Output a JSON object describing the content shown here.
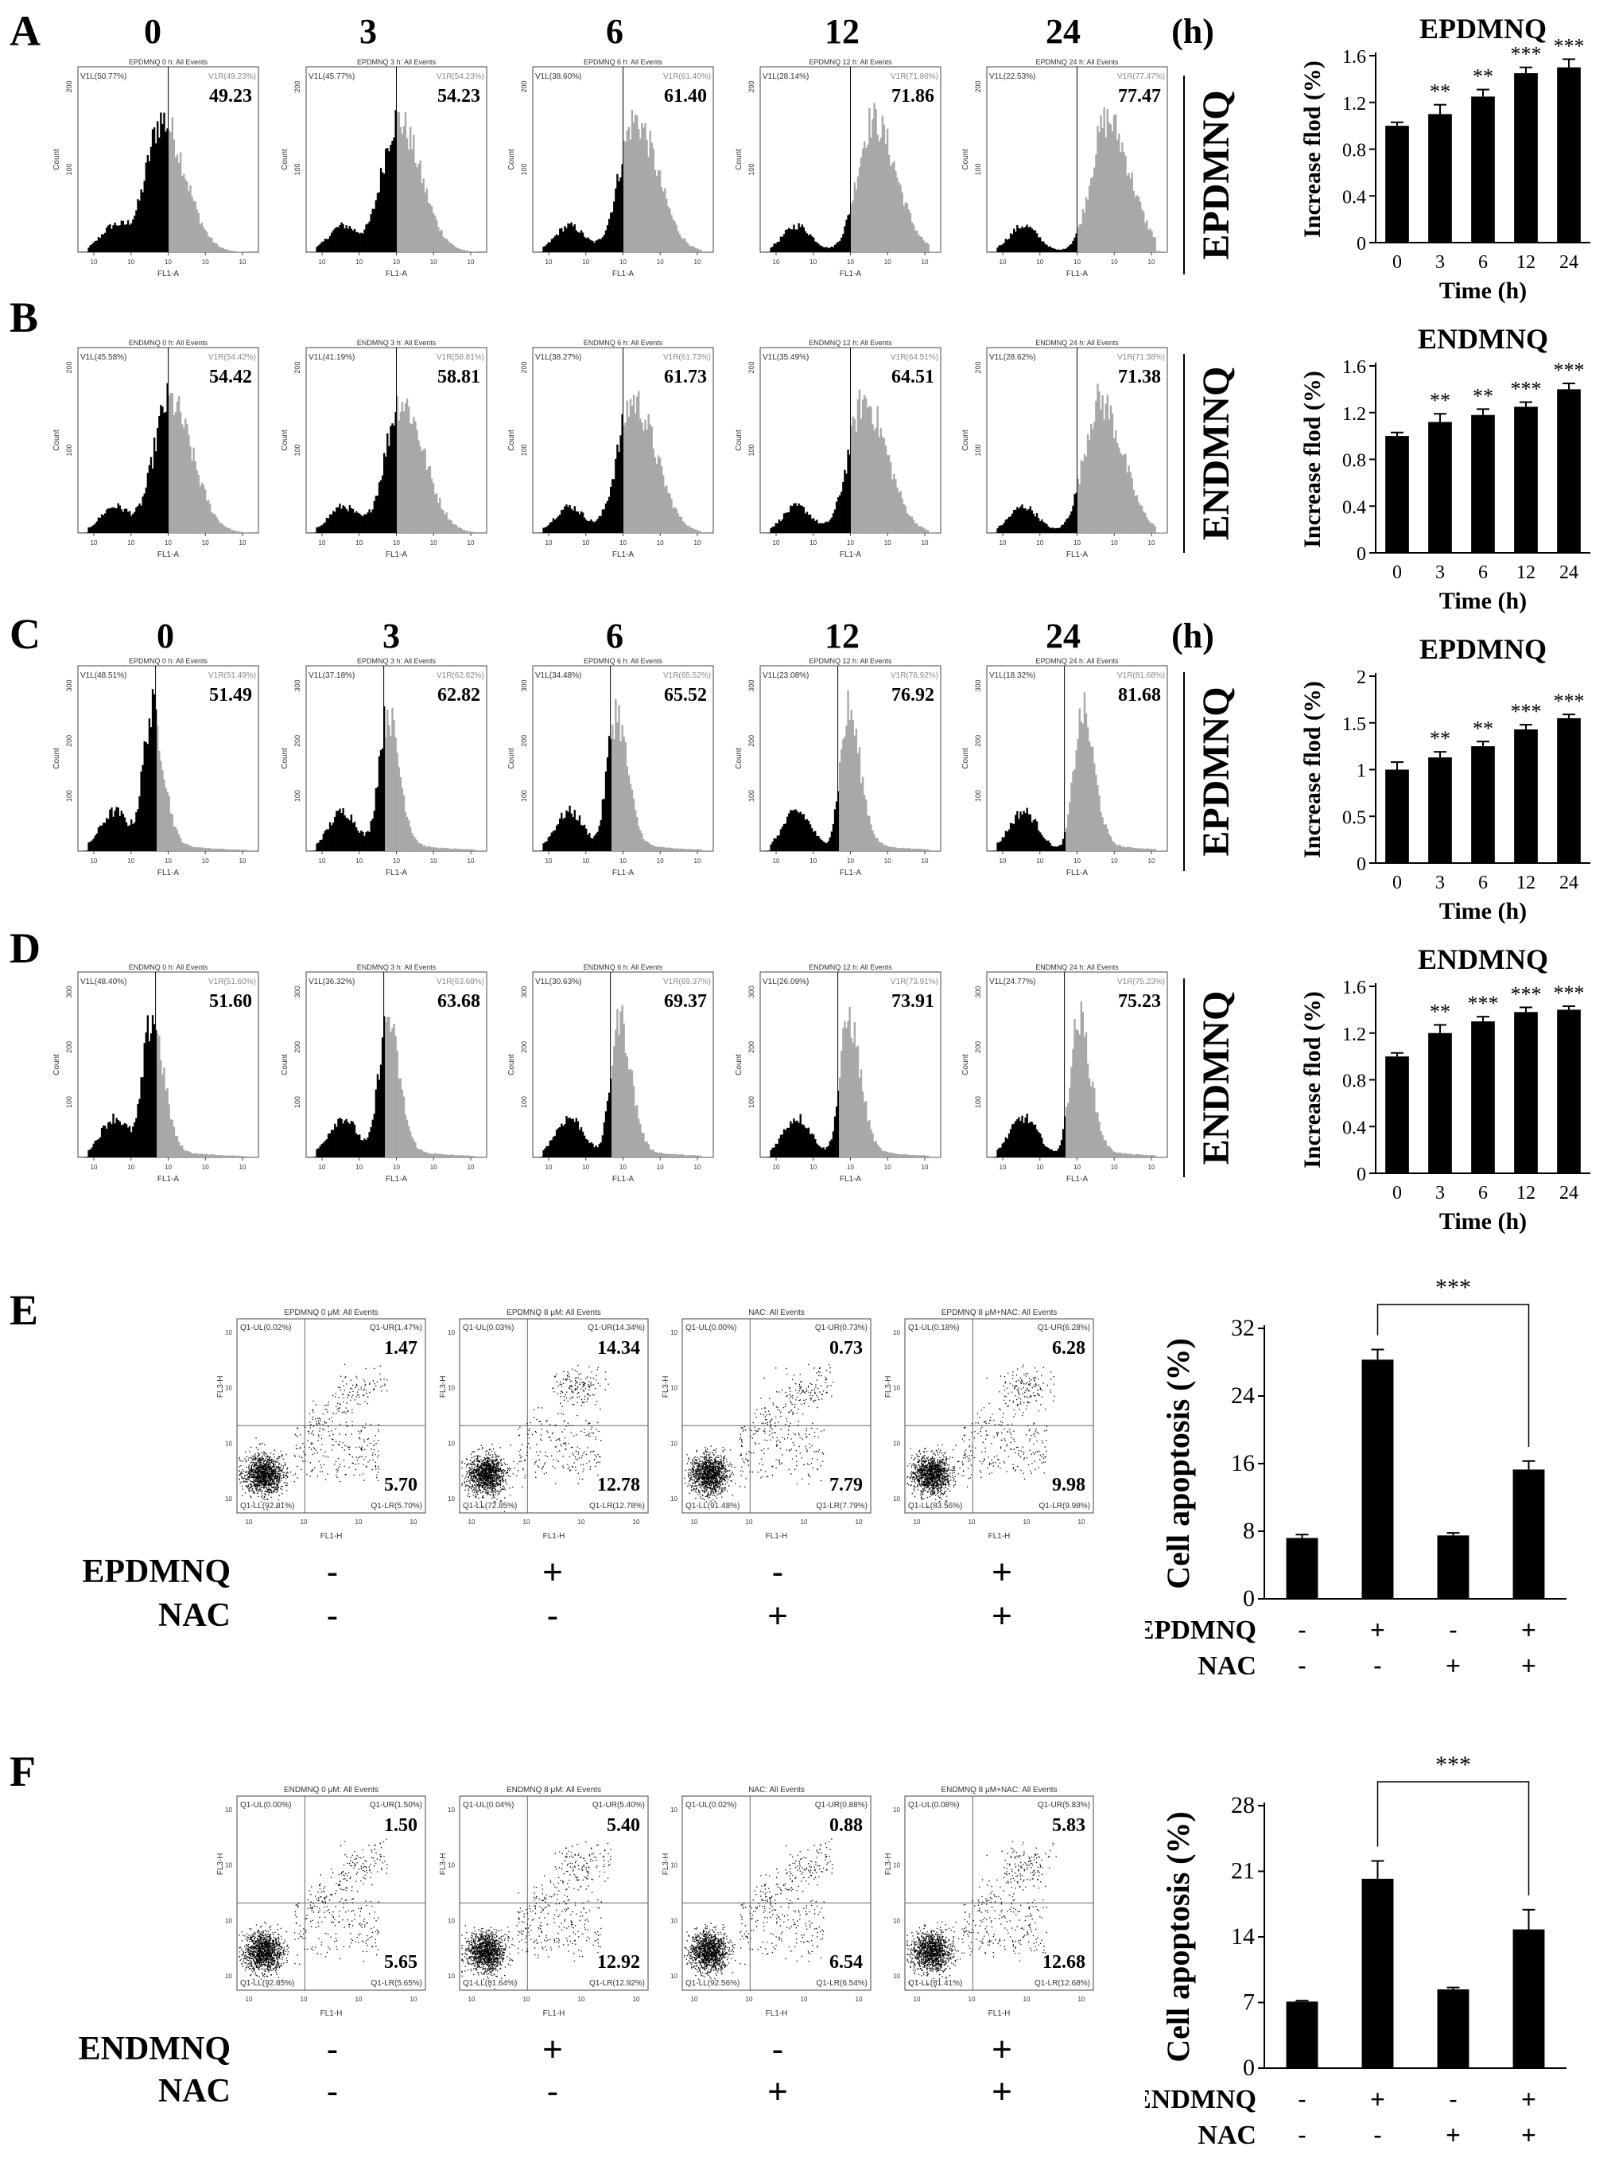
{
  "panels": {
    "A": {
      "letter": "A",
      "compound": "EPDMNQ",
      "hours": [
        "0",
        "3",
        "6",
        "12",
        "24"
      ],
      "hour_unit": "(h)",
      "hist_titles": [
        "EPDMNQ 0 h: All Events",
        "EPDMNQ 3 h: All Events",
        "EPDMNQ 6 h: All Events",
        "EPDMNQ 12 h: All Events",
        "EPDMNQ 24 h: All Events"
      ],
      "left_gate": [
        "V1L(50.77%)",
        "V1L(45.77%)",
        "V1L(38.60%)",
        "V1L(28.14%)",
        "V1L(22.53%)"
      ],
      "right_gate": [
        "V1R(49.23%)",
        "V1R(54.23%)",
        "V1R(61.40%)",
        "V1R(71.86%)",
        "V1R(77.47%)"
      ],
      "values": [
        "49.23",
        "54.23",
        "61.40",
        "71.86",
        "77.47"
      ],
      "peak_frac": [
        0.46,
        0.5,
        0.56,
        0.62,
        0.66
      ],
      "y_ticks": [
        "200",
        "100"
      ]
    },
    "B": {
      "letter": "B",
      "compound": "ENDMNQ",
      "hist_titles": [
        "ENDMNQ 0 h: All Events",
        "ENDMNQ 3 h: All Events",
        "ENDMNQ 6 h: All Events",
        "ENDMNQ 12 h: All Events",
        "ENDMNQ 24 h: All Events"
      ],
      "left_gate": [
        "V1L(45.58%)",
        "V1L(41.19%)",
        "V1L(38.27%)",
        "V1L(35.49%)",
        "V1L(28.62%)"
      ],
      "right_gate": [
        "V1R(54.42%)",
        "V1R(58.81%)",
        "V1R(61.73%)",
        "V1R(64.51%)",
        "V1R(71.38%)"
      ],
      "values": [
        "54.42",
        "58.81",
        "61.73",
        "64.51",
        "71.38"
      ],
      "peak_frac": [
        0.5,
        0.52,
        0.55,
        0.57,
        0.62
      ],
      "y_ticks": [
        "200",
        "100"
      ]
    },
    "C": {
      "letter": "C",
      "compound": "EPDMNQ",
      "hours": [
        "0",
        "3",
        "6",
        "12",
        "24"
      ],
      "hour_unit": "(h)",
      "hist_titles": [
        "EPDMNQ 0 h: All Events",
        "EPDMNQ 3 h: All Events",
        "EPDMNQ 6 h: All Events",
        "EPDMNQ 12 h: All Events",
        "EPDMNQ 24 h: All Events"
      ],
      "left_gate": [
        "V1L(48.51%)",
        "V1L(37.18%)",
        "V1L(34.48%)",
        "V1L(23.08%)",
        "V1L(18.32%)"
      ],
      "right_gate": [
        "V1R(51.49%)",
        "V1R(62.82%)",
        "V1R(65.52%)",
        "V1R(76.92%)",
        "V1R(81.68%)"
      ],
      "values": [
        "51.49",
        "62.82",
        "65.52",
        "76.92",
        "81.68"
      ],
      "peak_frac": [
        0.4,
        0.44,
        0.45,
        0.48,
        0.52
      ],
      "y_ticks": [
        "300",
        "200",
        "100"
      ]
    },
    "D": {
      "letter": "D",
      "compound": "ENDMNQ",
      "hist_titles": [
        "ENDMNQ 0 h: All Events",
        "ENDMNQ 3 h: All Events",
        "ENDMNQ 6 h: All Events",
        "ENDMNQ 12 h: All Events",
        "ENDMNQ 24 h: All Events"
      ],
      "left_gate": [
        "V1L(48.40%)",
        "V1L(36.32%)",
        "V1L(30.63%)",
        "V1L(26.09%)",
        "V1L(24.77%)"
      ],
      "right_gate": [
        "V1R(51.60%)",
        "V1R(63.68%)",
        "V1R(69.37%)",
        "V1R(73.91%)",
        "V1R(75.23%)"
      ],
      "values": [
        "51.60",
        "63.68",
        "69.37",
        "73.91",
        "75.23"
      ],
      "peak_frac": [
        0.4,
        0.44,
        0.47,
        0.48,
        0.5
      ],
      "y_ticks": [
        "300",
        "200",
        "100"
      ]
    },
    "E": {
      "letter": "E",
      "treat1": "EPDMNQ",
      "treat2": "NAC",
      "titles": [
        "EPDMNQ 0 μM: All Events",
        "EPDMNQ 8 μM: All Events",
        "NAC: All Events",
        "EPDMNQ 8 μM+NAC: All Events"
      ],
      "ul": [
        "Q1-UL(0.02%)",
        "Q1-UL(0.03%)",
        "Q1-UL(0.00%)",
        "Q1-UL(0.18%)"
      ],
      "ur": [
        "Q1-UR(1.47%)",
        "Q1-UR(14.34%)",
        "Q1-UR(0.73%)",
        "Q1-UR(6.28%)"
      ],
      "ll": [
        "Q1-LL(92.81%)",
        "Q1-LL(72.85%)",
        "Q1-LL(91.48%)",
        "Q1-LL(83.56%)"
      ],
      "lr": [
        "Q1-LR(5.70%)",
        "Q1-LR(12.78%)",
        "Q1-LR(7.79%)",
        "Q1-LR(9.98%)"
      ],
      "ur_val": [
        "1.47",
        "14.34",
        "0.73",
        "6.28"
      ],
      "lr_val": [
        "5.70",
        "12.78",
        "7.79",
        "9.98"
      ],
      "t1_signs": [
        "-",
        "+",
        "-",
        "+"
      ],
      "t2_signs": [
        "-",
        "-",
        "+",
        "+"
      ]
    },
    "F": {
      "letter": "F",
      "treat1": "ENDMNQ",
      "treat2": "NAC",
      "titles": [
        "ENDMNQ 0 μM: All Events",
        "ENDMNQ 8 μM: All Events",
        "NAC: All Events",
        "ENDMNQ 8 μM+NAC: All Events"
      ],
      "ul": [
        "Q1-UL(0.00%)",
        "Q1-UL(0.04%)",
        "Q1-UL(0.02%)",
        "Q1-UL(0.08%)"
      ],
      "ur": [
        "Q1-UR(1.50%)",
        "Q1-UR(5.40%)",
        "Q1-UR(0.88%)",
        "Q1-UR(5.83%)"
      ],
      "ll": [
        "Q1-LL(92.85%)",
        "Q1-LL(81.64%)",
        "Q1-LL(92.56%)",
        "Q1-LL(81.41%)"
      ],
      "lr": [
        "Q1-LR(5.65%)",
        "Q1-LR(12.92%)",
        "Q1-LR(6.54%)",
        "Q1-LR(12.68%)"
      ],
      "ur_val": [
        "1.50",
        "5.40",
        "0.88",
        "5.83"
      ],
      "lr_val": [
        "5.65",
        "12.92",
        "6.54",
        "12.68"
      ],
      "t1_signs": [
        "-",
        "+",
        "-",
        "+"
      ],
      "t2_signs": [
        "-",
        "-",
        "+",
        "+"
      ]
    }
  },
  "flow_axis": {
    "x_label": "FL1-A",
    "y_label": "Count",
    "dot_x_label": "FL1-H",
    "dot_y_label": "FL3-H"
  },
  "chart_data": [
    {
      "id": "A",
      "type": "bar",
      "title": "EPDMNQ",
      "xlabel": "Time (h)",
      "ylabel": "Increase flod (%)",
      "categories": [
        "0",
        "3",
        "6",
        "12",
        "24"
      ],
      "values": [
        1.0,
        1.1,
        1.25,
        1.45,
        1.5
      ],
      "errors": [
        0.03,
        0.08,
        0.06,
        0.05,
        0.07
      ],
      "annotations": [
        "",
        "**",
        "**",
        "***",
        "***"
      ],
      "ylim": [
        0,
        1.6
      ],
      "yticks": [
        "0",
        "0.4",
        "0.8",
        "1.2",
        "1.6"
      ]
    },
    {
      "id": "B",
      "type": "bar",
      "title": "ENDMNQ",
      "xlabel": "Time (h)",
      "ylabel": "Increase flod (%)",
      "categories": [
        "0",
        "3",
        "6",
        "12",
        "24"
      ],
      "values": [
        1.0,
        1.12,
        1.18,
        1.25,
        1.4
      ],
      "errors": [
        0.03,
        0.07,
        0.05,
        0.04,
        0.05
      ],
      "annotations": [
        "",
        "**",
        "**",
        "***",
        "***"
      ],
      "ylim": [
        0,
        1.6
      ],
      "yticks": [
        "0",
        "0.4",
        "0.8",
        "1.2",
        "1.6"
      ]
    },
    {
      "id": "C",
      "type": "bar",
      "title": "EPDMNQ",
      "xlabel": "Time (h)",
      "ylabel": "Increase flod (%)",
      "categories": [
        "0",
        "3",
        "6",
        "12",
        "24"
      ],
      "values": [
        1.0,
        1.13,
        1.25,
        1.43,
        1.55
      ],
      "errors": [
        0.08,
        0.06,
        0.05,
        0.05,
        0.04
      ],
      "annotations": [
        "",
        "**",
        "**",
        "***",
        "***"
      ],
      "ylim": [
        0,
        2
      ],
      "yticks": [
        "0",
        "0.5",
        "1",
        "1.5",
        "2"
      ]
    },
    {
      "id": "D",
      "type": "bar",
      "title": "ENDMNQ",
      "xlabel": "Time (h)",
      "ylabel": "Increase flod (%)",
      "categories": [
        "0",
        "3",
        "6",
        "12",
        "24"
      ],
      "values": [
        1.0,
        1.2,
        1.3,
        1.38,
        1.4
      ],
      "errors": [
        0.03,
        0.07,
        0.04,
        0.04,
        0.03
      ],
      "annotations": [
        "",
        "**",
        "***",
        "***",
        "***"
      ],
      "ylim": [
        0,
        1.6
      ],
      "yticks": [
        "0",
        "0.4",
        "0.8",
        "1.2",
        "1.6"
      ]
    },
    {
      "id": "E",
      "type": "bar",
      "ylabel": "Cell apoptosis (%)",
      "values": [
        7.2,
        28.3,
        7.5,
        15.3
      ],
      "errors": [
        0.4,
        1.2,
        0.3,
        1.0
      ],
      "ylim": [
        0,
        32
      ],
      "yticks": [
        "0",
        "8",
        "16",
        "24",
        "32"
      ],
      "significance": {
        "between": [
          1,
          3
        ],
        "label": "***"
      },
      "row_labels": [
        "EPDMNQ",
        "NAC"
      ],
      "row_signs": [
        [
          "-",
          "+",
          "-",
          "+"
        ],
        [
          "-",
          "-",
          "+",
          "+"
        ]
      ]
    },
    {
      "id": "F",
      "type": "bar",
      "ylabel": "Cell apoptosis (%)",
      "values": [
        7.1,
        20.2,
        8.4,
        14.8
      ],
      "errors": [
        0.1,
        1.9,
        0.2,
        2.1
      ],
      "ylim": [
        0,
        28
      ],
      "yticks": [
        "0",
        "7",
        "14",
        "21",
        "28"
      ],
      "significance": {
        "between": [
          1,
          3
        ],
        "label": "***"
      },
      "row_labels": [
        "ENDMNQ",
        "NAC"
      ],
      "row_signs": [
        [
          "-",
          "+",
          "-",
          "+"
        ],
        [
          "-",
          "-",
          "+",
          "+"
        ]
      ]
    }
  ]
}
